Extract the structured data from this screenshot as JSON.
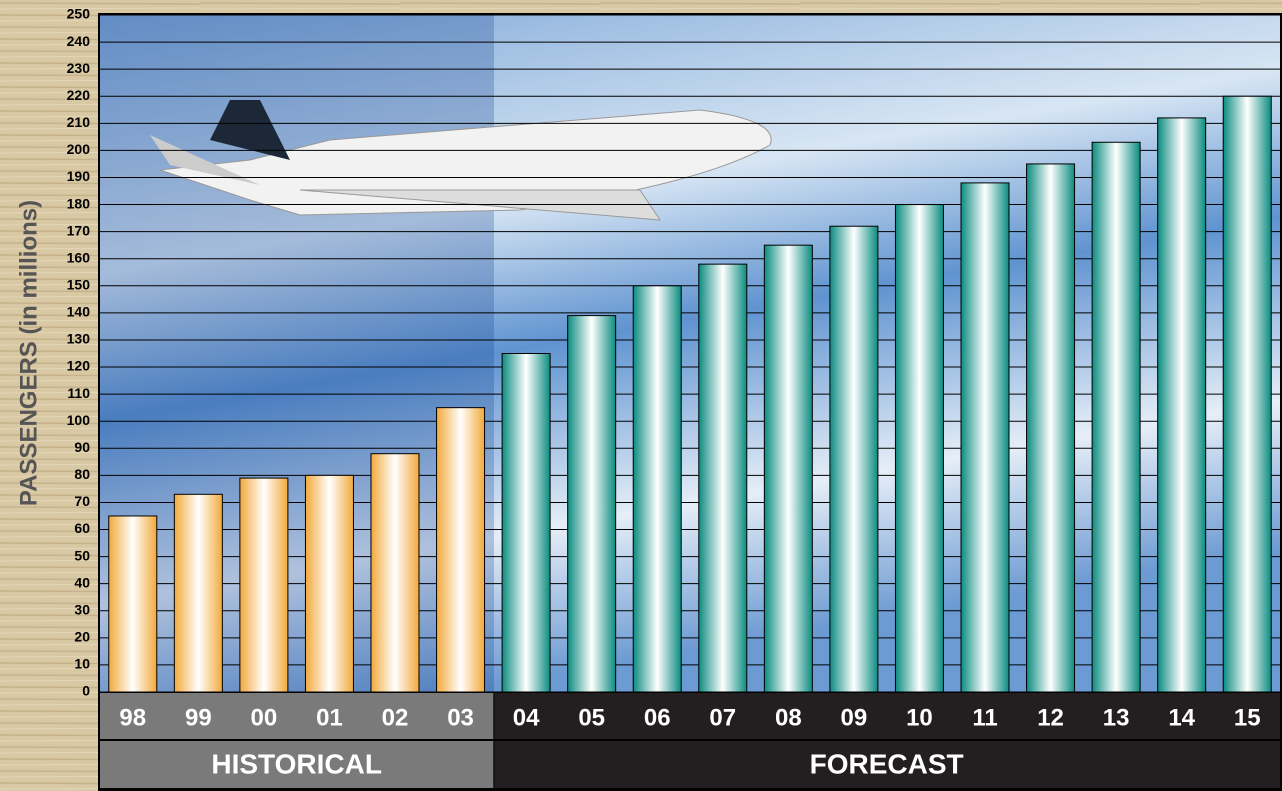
{
  "chart_data": {
    "type": "bar",
    "y_label": "PASSENGERS (in millions)",
    "categories": [
      "98",
      "99",
      "00",
      "01",
      "02",
      "03",
      "04",
      "05",
      "06",
      "07",
      "08",
      "09",
      "10",
      "11",
      "12",
      "13",
      "14",
      "15"
    ],
    "series": [
      {
        "name": "HISTORICAL",
        "color": "#f2a93b",
        "values": [
          65,
          73,
          79,
          80,
          88,
          105,
          null,
          null,
          null,
          null,
          null,
          null,
          null,
          null,
          null,
          null,
          null,
          null
        ]
      },
      {
        "name": "FORECAST",
        "color": "#0b8c80",
        "values": [
          null,
          null,
          null,
          null,
          null,
          null,
          125,
          139,
          150,
          158,
          165,
          172,
          180,
          188,
          195,
          203,
          212,
          220
        ]
      }
    ],
    "ylim": [
      0,
      250
    ],
    "yticks": [
      0,
      10,
      20,
      30,
      40,
      50,
      60,
      70,
      80,
      90,
      100,
      110,
      120,
      130,
      140,
      150,
      160,
      170,
      180,
      190,
      200,
      210,
      220,
      230,
      240,
      250
    ],
    "grid": true
  }
}
